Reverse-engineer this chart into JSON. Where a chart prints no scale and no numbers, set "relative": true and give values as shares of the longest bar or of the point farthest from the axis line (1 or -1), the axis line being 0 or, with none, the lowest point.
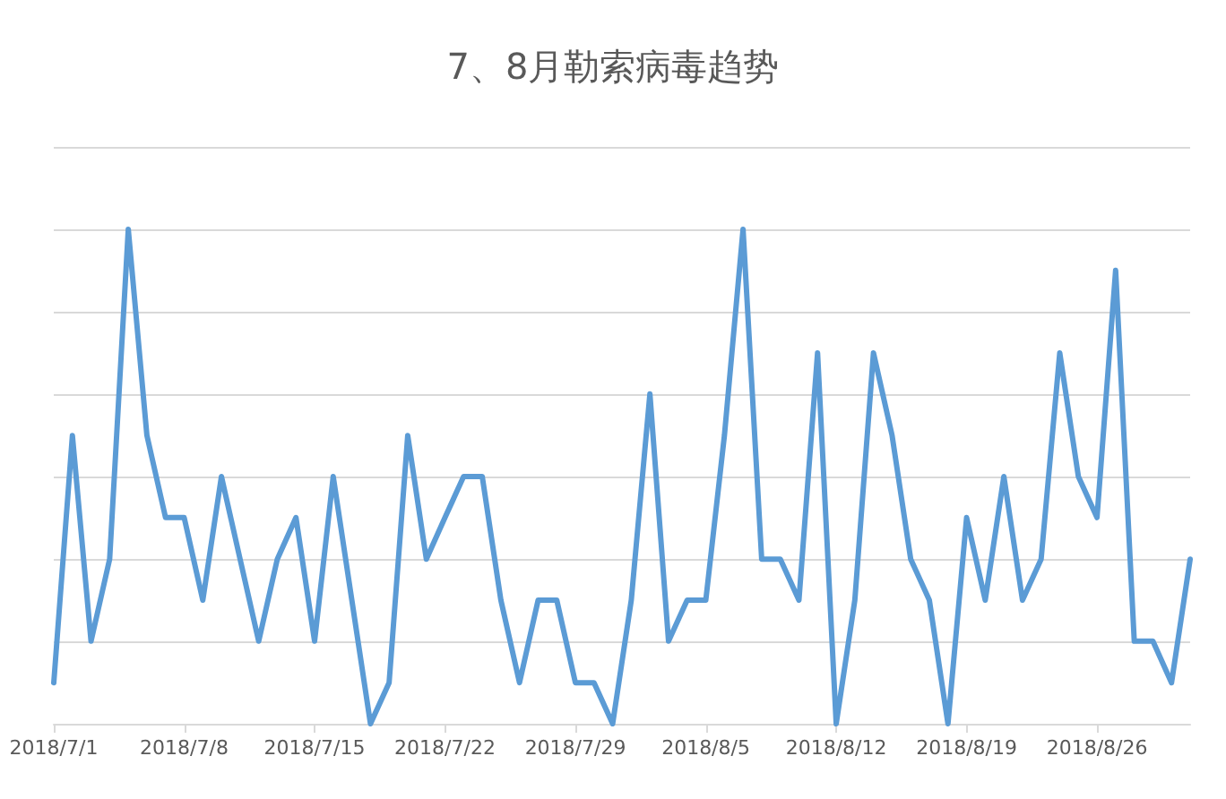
{
  "chart_data": {
    "type": "line",
    "title": "7、8月勒索病毒趋势",
    "relative": true,
    "grid": "y",
    "marker": "none",
    "line_style": "solid",
    "categories": [
      "2018/7/1",
      null,
      null,
      null,
      null,
      null,
      null,
      "2018/7/8",
      null,
      null,
      null,
      null,
      null,
      null,
      "2018/7/15",
      null,
      null,
      null,
      null,
      null,
      null,
      "2018/7/22",
      null,
      null,
      null,
      null,
      null,
      null,
      "2018/7/29",
      null,
      null,
      null,
      null,
      null,
      null,
      "2018/8/5",
      null,
      null,
      null,
      null,
      null,
      null,
      "2018/8/12",
      null,
      null,
      null,
      null,
      null,
      null,
      "2018/8/19",
      null,
      null,
      null,
      null,
      null,
      null,
      "2018/8/26",
      null,
      null,
      null,
      null,
      null
    ],
    "series": [
      {
        "color": "#5b9bd5",
        "values": [
          0.083,
          0.583,
          0.167,
          0.333,
          1,
          0.583,
          0.417,
          0.417,
          0.25,
          0.5,
          0.333,
          0.167,
          0.333,
          0.417,
          0.167,
          0.5,
          0.25,
          0,
          0.083,
          0.583,
          0.333,
          0.417,
          0.5,
          0.5,
          0.25,
          0.083,
          0.25,
          0.25,
          0.083,
          0.083,
          0,
          0.25,
          0.667,
          0.167,
          0.25,
          0.25,
          0.583,
          1,
          0.333,
          0.333,
          0.25,
          0.75,
          0,
          0.25,
          0.75,
          0.583,
          0.333,
          0.25,
          0,
          0.417,
          0.25,
          0.5,
          0.25,
          0.333,
          0.75,
          0.5,
          0.417,
          0.917,
          0.167,
          0.167,
          0.083,
          0.333
        ]
      }
    ]
  }
}
